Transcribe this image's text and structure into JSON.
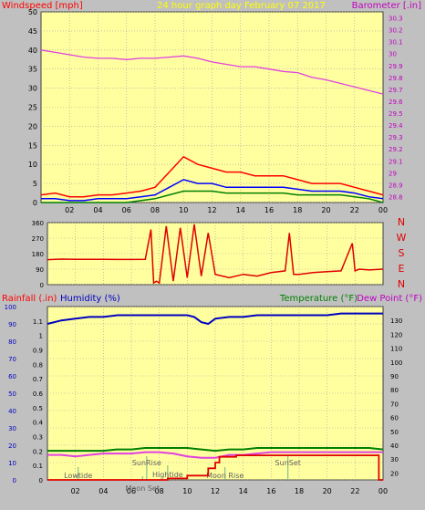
{
  "colors": {
    "background": "#c0c0c0",
    "plot_bg": "#ffffa0",
    "grid": "#a0a0a0",
    "wind_gust": "#ff0000",
    "wind_avg": "#0000ff",
    "wind_low": "#008000",
    "barometer": "#e040e0",
    "direction": "#e00000",
    "humidity": "#0000c0",
    "temperature": "#008000",
    "dewpoint": "#e040e0",
    "rainfall": "#e00000",
    "event_marker": "#70b090"
  },
  "chart_data": [
    {
      "type": "line",
      "title": "24 hour graph day   February 07 2017",
      "left_axis_label": "Windspeed [mph]",
      "right_axis_label": "Barometer [.in]",
      "x_tick_labels": [
        "02",
        "04",
        "06",
        "08",
        "10",
        "12",
        "14",
        "16",
        "18",
        "20",
        "22",
        "00"
      ],
      "left_ticks": [
        0,
        5,
        10,
        15,
        20,
        25,
        30,
        35,
        40,
        45,
        50
      ],
      "left_range": [
        0,
        50
      ],
      "right_ticks": [
        "28.8",
        "28.9",
        "29",
        "29.1",
        "29.2",
        "29.3",
        "29.4",
        "29.5",
        "29.6",
        "29.7",
        "29.8",
        "29.9",
        "30",
        "30.1",
        "30.2",
        "30.3"
      ],
      "right_range": [
        28.75,
        30.35
      ],
      "x_range": [
        0,
        24
      ],
      "series": [
        {
          "key": "barometer",
          "axis": "right",
          "x": [
            0,
            1,
            2,
            3,
            4,
            5,
            6,
            7,
            8,
            9,
            10,
            11,
            12,
            13,
            14,
            15,
            16,
            17,
            18,
            19,
            20,
            21,
            22,
            23,
            24
          ],
          "values": [
            30.03,
            30.01,
            29.99,
            29.97,
            29.96,
            29.96,
            29.95,
            29.96,
            29.96,
            29.97,
            29.98,
            29.96,
            29.93,
            29.91,
            29.89,
            29.89,
            29.87,
            29.85,
            29.84,
            29.8,
            29.78,
            29.75,
            29.72,
            29.69,
            29.66
          ]
        },
        {
          "key": "wind_gust",
          "axis": "left",
          "x": [
            0,
            1,
            2,
            3,
            4,
            5,
            6,
            7,
            8,
            9,
            10,
            11,
            12,
            13,
            14,
            15,
            16,
            17,
            18,
            19,
            20,
            21,
            22,
            23,
            24
          ],
          "values": [
            2,
            2.5,
            1.5,
            1.5,
            2,
            2,
            2.5,
            3,
            4,
            8,
            12,
            10,
            9,
            8,
            8,
            7,
            7,
            7,
            6,
            5,
            5,
            5,
            4,
            3,
            2
          ]
        },
        {
          "key": "wind_avg",
          "axis": "left",
          "x": [
            0,
            1,
            2,
            3,
            4,
            5,
            6,
            7,
            8,
            9,
            10,
            11,
            12,
            13,
            14,
            15,
            16,
            17,
            18,
            19,
            20,
            21,
            22,
            23,
            24
          ],
          "values": [
            1,
            1,
            0.5,
            0.5,
            1,
            1,
            1,
            1.5,
            2,
            4,
            6,
            5,
            5,
            4,
            4,
            4,
            4,
            4,
            3.5,
            3,
            3,
            3,
            2.5,
            1.5,
            1
          ]
        },
        {
          "key": "wind_low",
          "axis": "left",
          "x": [
            0,
            1,
            2,
            3,
            4,
            5,
            6,
            7,
            8,
            9,
            10,
            11,
            12,
            13,
            14,
            15,
            16,
            17,
            18,
            19,
            20,
            21,
            22,
            23,
            24
          ],
          "values": [
            0,
            0,
            0,
            0,
            0,
            0,
            0,
            0.5,
            1,
            2,
            3,
            3,
            3,
            2.5,
            2.5,
            2.5,
            2.5,
            2.5,
            2,
            2,
            2,
            2,
            1.5,
            1,
            0
          ]
        }
      ]
    },
    {
      "type": "line",
      "title": "",
      "left_ticks": [
        0,
        90,
        180,
        270,
        360
      ],
      "left_range": [
        0,
        360
      ],
      "right_labels": [
        "N",
        "W",
        "S",
        "E",
        "N"
      ],
      "x_range": [
        0,
        24
      ],
      "series": [
        {
          "key": "direction",
          "axis": "left",
          "x": [
            0,
            1,
            2,
            3,
            4,
            5,
            6,
            7,
            7.4,
            7.6,
            7.8,
            8,
            8.5,
            9,
            9.5,
            10,
            10.5,
            11,
            11.5,
            12,
            13,
            14,
            15,
            16,
            17,
            17.3,
            17.6,
            18,
            19,
            20,
            21,
            21.8,
            22,
            22.3,
            23,
            24
          ],
          "values": [
            145,
            148,
            147,
            147,
            147,
            146,
            146,
            147,
            320,
            10,
            20,
            10,
            340,
            20,
            330,
            40,
            350,
            50,
            300,
            60,
            40,
            60,
            50,
            70,
            80,
            300,
            60,
            60,
            70,
            75,
            80,
            240,
            80,
            90,
            85,
            90
          ]
        }
      ]
    },
    {
      "type": "line",
      "title": "",
      "labels": {
        "rainfall": "Rainfall (.in)",
        "humidity": "Humidity (%)",
        "temperature": "Temperature (°F)",
        "dewpoint": "Dew Point (°F)"
      },
      "humidity_ticks": [
        0,
        10,
        20,
        30,
        40,
        50,
        60,
        70,
        80,
        90,
        100
      ],
      "humidity_range": [
        0,
        100
      ],
      "rain_ticks": [
        "0",
        "0.1",
        "0.2",
        "0.3",
        "0.4",
        "0.5",
        "0.6",
        "0.7",
        "0.8",
        "0.9",
        "1",
        "1.1"
      ],
      "rain_range": [
        0,
        1.2
      ],
      "temp_ticks": [
        20,
        30,
        40,
        50,
        60,
        70,
        80,
        90,
        100,
        110,
        120,
        130
      ],
      "temp_range": [
        15,
        140
      ],
      "x_tick_labels": [
        "02",
        "04",
        "06",
        "08",
        "10",
        "12",
        "14",
        "16",
        "18",
        "20",
        "22",
        "00"
      ],
      "x_range": [
        0,
        24
      ],
      "series": [
        {
          "key": "humidity",
          "axis": "humidity",
          "x": [
            0,
            1,
            2,
            3,
            4,
            5,
            6,
            7,
            8,
            9,
            10,
            10.5,
            11,
            11.5,
            12,
            13,
            14,
            15,
            16,
            17,
            18,
            19,
            20,
            21,
            22,
            22.5,
            23,
            24
          ],
          "values": [
            90,
            92,
            93,
            94,
            94,
            95,
            95,
            95,
            95,
            95,
            95,
            94,
            91,
            90,
            93,
            94,
            94,
            95,
            95,
            95,
            95,
            95,
            95,
            96,
            96,
            96,
            96,
            96
          ]
        },
        {
          "key": "temperature",
          "axis": "temp",
          "x": [
            0,
            1,
            2,
            3,
            4,
            5,
            6,
            7,
            8,
            9,
            10,
            11,
            12,
            13,
            14,
            15,
            16,
            17,
            18,
            19,
            20,
            21,
            22,
            23,
            24
          ],
          "values": [
            36,
            36,
            36,
            36,
            36,
            37,
            37,
            38,
            38,
            38,
            38,
            37,
            36,
            37,
            37,
            38,
            38,
            38,
            38,
            38,
            38,
            38,
            38,
            38,
            37
          ]
        },
        {
          "key": "dewpoint",
          "axis": "temp",
          "x": [
            0,
            1,
            2,
            3,
            4,
            5,
            6,
            7,
            8,
            9,
            10,
            11,
            12,
            13,
            14,
            15,
            16,
            17,
            18,
            19,
            20,
            21,
            22,
            23,
            24
          ],
          "values": [
            33,
            33,
            32,
            33,
            34,
            34,
            34,
            35,
            35,
            34,
            32,
            31,
            31,
            33,
            33,
            34,
            35,
            35,
            35,
            35,
            35,
            35,
            35,
            35,
            35
          ]
        },
        {
          "key": "rainfall",
          "axis": "rain",
          "x": [
            0,
            8.6,
            8.6,
            10,
            10,
            11.5,
            11.5,
            12,
            12,
            12.3,
            12.3,
            13.5,
            13.5,
            23.7,
            23.7,
            24
          ],
          "values": [
            0,
            0,
            0.01,
            0.01,
            0.03,
            0.03,
            0.08,
            0.08,
            0.12,
            0.12,
            0.16,
            0.16,
            0.17,
            0.17,
            0,
            0
          ]
        }
      ],
      "events": [
        {
          "label": "Lowtide",
          "x": 2.2,
          "row": "lower"
        },
        {
          "label": "Moon Set",
          "x": 6.8,
          "row": "bottom"
        },
        {
          "label": "SunRise",
          "x": 7.1,
          "row": "upper"
        },
        {
          "label": "Hightide",
          "x": 8.6,
          "row": "middle"
        },
        {
          "label": "Moon Rise",
          "x": 12.7,
          "row": "lower"
        },
        {
          "label": "SunSet",
          "x": 17.2,
          "row": "upper"
        }
      ]
    }
  ]
}
